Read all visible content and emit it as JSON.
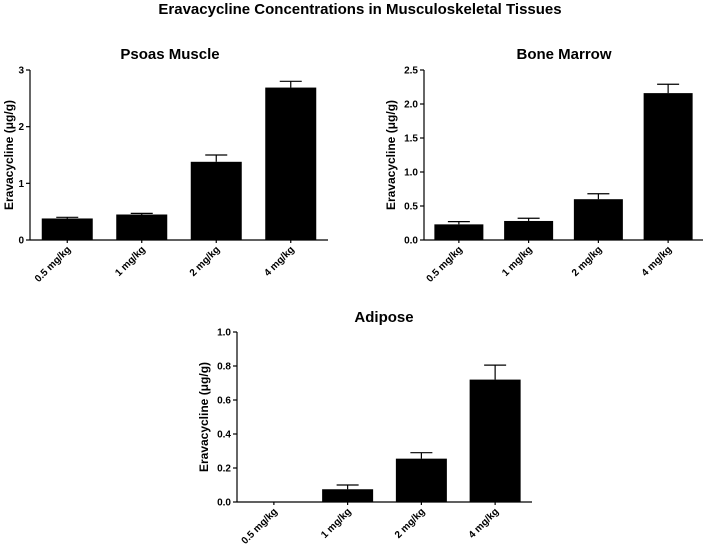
{
  "figure_title": "Eravacycline Concentrations in Musculoskeletal Tissues",
  "chart_data": [
    {
      "type": "bar",
      "title": "Psoas Muscle",
      "xlabel": "",
      "ylabel": "Eravacycline (μg/g)",
      "categories": [
        "0.5 mg/kg",
        "1 mg/kg",
        "2 mg/kg",
        "4 mg/kg"
      ],
      "values": [
        0.38,
        0.45,
        1.38,
        2.69
      ],
      "errors": [
        0.02,
        0.02,
        0.12,
        0.11
      ],
      "ylim": [
        0,
        3
      ],
      "yticks": [
        0,
        1,
        2,
        3
      ],
      "ytick_labels": [
        "0",
        "1",
        "2",
        "3"
      ],
      "bar_color": "#000000",
      "grid": false
    },
    {
      "type": "bar",
      "title": "Bone Marrow",
      "xlabel": "",
      "ylabel": "Eravacycline (μg/g)",
      "categories": [
        "0.5 mg/kg",
        "1 mg/kg",
        "2 mg/kg",
        "4 mg/kg"
      ],
      "values": [
        0.23,
        0.28,
        0.6,
        2.16
      ],
      "errors": [
        0.04,
        0.04,
        0.08,
        0.13
      ],
      "ylim": [
        0,
        2.5
      ],
      "yticks": [
        0,
        0.5,
        1,
        1.5,
        2,
        2.5
      ],
      "ytick_labels": [
        "0.0",
        "0.5",
        "1.0",
        "1.5",
        "2.0",
        "2.5"
      ],
      "bar_color": "#000000",
      "grid": false
    },
    {
      "type": "bar",
      "title": "Adipose",
      "xlabel": "",
      "ylabel": "Eravacycline (μg/g)",
      "categories": [
        "0.5 mg/kg",
        "1 mg/kg",
        "2 mg/kg",
        "4 mg/kg"
      ],
      "values": [
        0,
        0.075,
        0.255,
        0.72
      ],
      "errors": [
        0,
        0.025,
        0.035,
        0.085
      ],
      "ylim": [
        0,
        1
      ],
      "yticks": [
        0,
        0.2,
        0.4,
        0.6,
        0.8,
        1
      ],
      "ytick_labels": [
        "0.0",
        "0.2",
        "0.4",
        "0.6",
        "0.8",
        "1.0"
      ],
      "bar_color": "#000000",
      "grid": false
    }
  ]
}
